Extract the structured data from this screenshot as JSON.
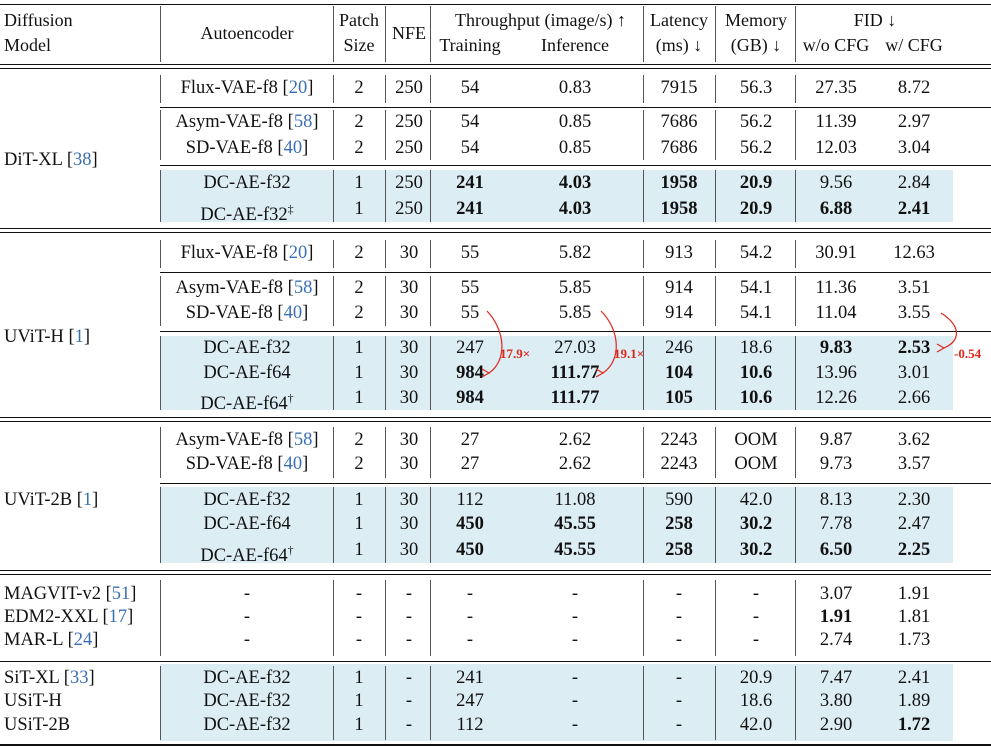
{
  "headers": {
    "diffusion_model": [
      "Diffusion",
      "Model"
    ],
    "autoencoder": "Autoencoder",
    "patch": [
      "Patch",
      "Size"
    ],
    "nfe": "NFE",
    "throughput": "Throughput (image/s) ↑",
    "training": "Training",
    "inference": "Inference",
    "latency": [
      "Latency",
      "(ms) ↓"
    ],
    "memory": [
      "Memory",
      "(GB) ↓"
    ],
    "fid": "FID ↓",
    "fid_wo": "w/o CFG",
    "fid_w": "w/ CFG"
  },
  "groups": [
    {
      "model": "DiT-XL",
      "ref": "38",
      "rows": [
        {
          "ae": "Flux-VAE-f8",
          "ref": "20",
          "sup": "",
          "patch": "2",
          "nfe": "250",
          "train": "54",
          "infer": "0.83",
          "lat": "7915",
          "mem": "56.3",
          "fid_wo": "27.35",
          "fid_w": "8.72",
          "hl": false,
          "bold": []
        },
        {
          "ae": "Asym-VAE-f8",
          "ref": "58",
          "sup": "",
          "patch": "2",
          "nfe": "250",
          "train": "54",
          "infer": "0.85",
          "lat": "7686",
          "mem": "56.2",
          "fid_wo": "11.39",
          "fid_w": "2.97",
          "hl": false,
          "bold": []
        },
        {
          "ae": "SD-VAE-f8",
          "ref": "40",
          "sup": "",
          "patch": "2",
          "nfe": "250",
          "train": "54",
          "infer": "0.85",
          "lat": "7686",
          "mem": "56.2",
          "fid_wo": "12.03",
          "fid_w": "3.04",
          "hl": false,
          "bold": []
        },
        {
          "ae": "DC-AE-f32",
          "ref": "",
          "sup": "",
          "patch": "1",
          "nfe": "250",
          "train": "241",
          "infer": "4.03",
          "lat": "1958",
          "mem": "20.9",
          "fid_wo": "9.56",
          "fid_w": "2.84",
          "hl": true,
          "bold": [
            "train",
            "infer",
            "lat",
            "mem"
          ]
        },
        {
          "ae": "DC-AE-f32",
          "ref": "",
          "sup": "‡",
          "patch": "1",
          "nfe": "250",
          "train": "241",
          "infer": "4.03",
          "lat": "1958",
          "mem": "20.9",
          "fid_wo": "6.88",
          "fid_w": "2.41",
          "hl": true,
          "bold": [
            "train",
            "infer",
            "lat",
            "mem",
            "fid_wo",
            "fid_w"
          ]
        }
      ]
    },
    {
      "model": "UViT-H",
      "ref": "1",
      "rows": [
        {
          "ae": "Flux-VAE-f8",
          "ref": "20",
          "sup": "",
          "patch": "2",
          "nfe": "30",
          "train": "55",
          "infer": "5.82",
          "lat": "913",
          "mem": "54.2",
          "fid_wo": "30.91",
          "fid_w": "12.63",
          "hl": false,
          "bold": []
        },
        {
          "ae": "Asym-VAE-f8",
          "ref": "58",
          "sup": "",
          "patch": "2",
          "nfe": "30",
          "train": "55",
          "infer": "5.85",
          "lat": "914",
          "mem": "54.1",
          "fid_wo": "11.36",
          "fid_w": "3.51",
          "hl": false,
          "bold": []
        },
        {
          "ae": "SD-VAE-f8",
          "ref": "40",
          "sup": "",
          "patch": "2",
          "nfe": "30",
          "train": "55",
          "infer": "5.85",
          "lat": "914",
          "mem": "54.1",
          "fid_wo": "11.04",
          "fid_w": "3.55",
          "hl": false,
          "bold": []
        },
        {
          "ae": "DC-AE-f32",
          "ref": "",
          "sup": "",
          "patch": "1",
          "nfe": "30",
          "train": "247",
          "infer": "27.03",
          "lat": "246",
          "mem": "18.6",
          "fid_wo": "9.83",
          "fid_w": "2.53",
          "hl": true,
          "bold": [
            "fid_wo",
            "fid_w"
          ]
        },
        {
          "ae": "DC-AE-f64",
          "ref": "",
          "sup": "",
          "patch": "1",
          "nfe": "30",
          "train": "984",
          "infer": "111.77",
          "lat": "104",
          "mem": "10.6",
          "fid_wo": "13.96",
          "fid_w": "3.01",
          "hl": true,
          "bold": [
            "train",
            "infer",
            "lat",
            "mem"
          ]
        },
        {
          "ae": "DC-AE-f64",
          "ref": "",
          "sup": "†",
          "patch": "1",
          "nfe": "30",
          "train": "984",
          "infer": "111.77",
          "lat": "105",
          "mem": "10.6",
          "fid_wo": "12.26",
          "fid_w": "2.66",
          "hl": true,
          "bold": [
            "train",
            "infer",
            "lat",
            "mem"
          ]
        }
      ]
    },
    {
      "model": "UViT-2B",
      "ref": "1",
      "rows": [
        {
          "ae": "Asym-VAE-f8",
          "ref": "58",
          "sup": "",
          "patch": "2",
          "nfe": "30",
          "train": "27",
          "infer": "2.62",
          "lat": "2243",
          "mem": "OOM",
          "fid_wo": "9.87",
          "fid_w": "3.62",
          "hl": false,
          "bold": []
        },
        {
          "ae": "SD-VAE-f8",
          "ref": "40",
          "sup": "",
          "patch": "2",
          "nfe": "30",
          "train": "27",
          "infer": "2.62",
          "lat": "2243",
          "mem": "OOM",
          "fid_wo": "9.73",
          "fid_w": "3.57",
          "hl": false,
          "bold": []
        },
        {
          "ae": "DC-AE-f32",
          "ref": "",
          "sup": "",
          "patch": "1",
          "nfe": "30",
          "train": "112",
          "infer": "11.08",
          "lat": "590",
          "mem": "42.0",
          "fid_wo": "8.13",
          "fid_w": "2.30",
          "hl": true,
          "bold": []
        },
        {
          "ae": "DC-AE-f64",
          "ref": "",
          "sup": "",
          "patch": "1",
          "nfe": "30",
          "train": "450",
          "infer": "45.55",
          "lat": "258",
          "mem": "30.2",
          "fid_wo": "7.78",
          "fid_w": "2.47",
          "hl": true,
          "bold": [
            "train",
            "infer",
            "lat",
            "mem"
          ]
        },
        {
          "ae": "DC-AE-f64",
          "ref": "",
          "sup": "†",
          "patch": "1",
          "nfe": "30",
          "train": "450",
          "infer": "45.55",
          "lat": "258",
          "mem": "30.2",
          "fid_wo": "6.50",
          "fid_w": "2.25",
          "hl": true,
          "bold": [
            "train",
            "infer",
            "lat",
            "mem",
            "fid_wo",
            "fid_w"
          ]
        }
      ]
    }
  ],
  "others": [
    {
      "model": "MAGVIT-v2",
      "ref": "51",
      "ae": "-",
      "patch": "-",
      "nfe": "-",
      "train": "-",
      "infer": "-",
      "lat": "-",
      "mem": "-",
      "fid_wo": "3.07",
      "fid_w": "1.91",
      "bold": []
    },
    {
      "model": "EDM2-XXL",
      "ref": "17",
      "ae": "-",
      "patch": "-",
      "nfe": "-",
      "train": "-",
      "infer": "-",
      "lat": "-",
      "mem": "-",
      "fid_wo": "1.91",
      "fid_w": "1.81",
      "bold": [
        "fid_wo"
      ]
    },
    {
      "model": "MAR-L",
      "ref": "24",
      "ae": "-",
      "patch": "-",
      "nfe": "-",
      "train": "-",
      "infer": "-",
      "lat": "-",
      "mem": "-",
      "fid_wo": "2.74",
      "fid_w": "1.73",
      "bold": []
    }
  ],
  "sit_rows": [
    {
      "model": "SiT-XL",
      "ref": "33",
      "ae": "DC-AE-f32",
      "patch": "1",
      "nfe": "-",
      "train": "241",
      "infer": "-",
      "lat": "-",
      "mem": "20.9",
      "fid_wo": "7.47",
      "fid_w": "2.41",
      "bold": []
    },
    {
      "model": "USiT-H",
      "ref": "",
      "ae": "DC-AE-f32",
      "patch": "1",
      "nfe": "-",
      "train": "247",
      "infer": "-",
      "lat": "-",
      "mem": "18.6",
      "fid_wo": "3.80",
      "fid_w": "1.89",
      "bold": []
    },
    {
      "model": "USiT-2B",
      "ref": "",
      "ae": "DC-AE-f32",
      "patch": "1",
      "nfe": "-",
      "train": "112",
      "infer": "-",
      "lat": "-",
      "mem": "42.0",
      "fid_wo": "2.90",
      "fid_w": "1.72",
      "bold": [
        "fid_w"
      ]
    }
  ],
  "annotations": {
    "train_speedup": "17.9×",
    "infer_speedup": "19.1×",
    "fid_delta": "-0.54",
    "color": "#e0261b"
  },
  "highlight_color": "#dcedf3"
}
